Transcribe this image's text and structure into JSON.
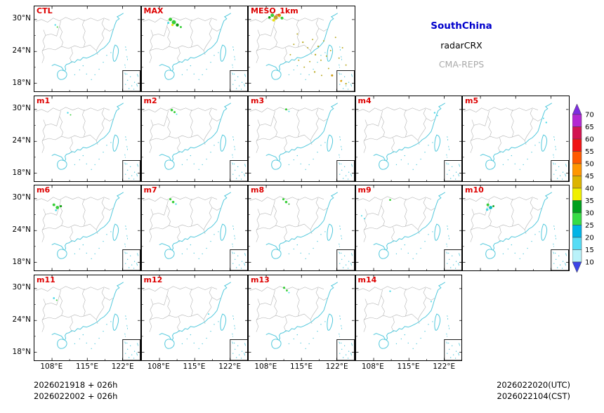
{
  "figure": {
    "legend": {
      "model": "SouthChina",
      "obs": "radarCRX",
      "ensemble": "CMA-REPS",
      "model_color": "#0000cc",
      "obs_color": "#000000",
      "ensemble_color": "#aaaaaa"
    },
    "footer": {
      "init_lines": [
        "2026021918 + 026h",
        "2026022002 + 026h"
      ],
      "valid_lines": [
        "2026022020(UTC)",
        "2026022104(CST)"
      ]
    },
    "axes": {
      "y_ticks": [
        "30°N",
        "24°N",
        "18°N"
      ],
      "x_ticks": [
        "108°E",
        "115°E",
        "122°E"
      ]
    },
    "panel_label_color": "#dd0000",
    "map_colors": {
      "coastline": "#50c8dc",
      "provinces": "#b4b4b4"
    },
    "rows": [
      {
        "panels": [
          {
            "label": "CTL",
            "echoes": [
              [
                30,
                27,
                1.2,
                "#40d8e8"
              ],
              [
                33,
                30,
                1.0,
                "#2ecc2e"
              ]
            ]
          },
          {
            "label": "MAX",
            "echoes": [
              [
                41,
                19,
                2.5,
                "#2ecc2e"
              ],
              [
                46,
                23,
                3.0,
                "#2ecc2e"
              ],
              [
                51,
                27,
                2.2,
                "#009900"
              ],
              [
                44,
                27,
                1.6,
                "#e8e000"
              ],
              [
                56,
                30,
                1.5,
                "#2ecc2e"
              ],
              [
                38,
                24,
                1.5,
                "#40d8e8"
              ]
            ]
          },
          {
            "label": "MESO_1km",
            "echoes": [
              [
                34,
                13,
                2.5,
                "#2ecc2e"
              ],
              [
                39,
                16,
                3.0,
                "#b8a81e"
              ],
              [
                44,
                13,
                2.5,
                "#e8a000"
              ],
              [
                48,
                17,
                2.0,
                "#2ecc2e"
              ],
              [
                36,
                20,
                2.0,
                "#e8e000"
              ],
              [
                30,
                16,
                1.8,
                "#009900"
              ],
              [
                70,
                40,
                1.0,
                "#b8a81e"
              ],
              [
                78,
                52,
                1.2,
                "#b8a81e"
              ],
              [
                85,
                60,
                1.0,
                "#b8a81e"
              ],
              [
                92,
                48,
                1.0,
                "#b8a81e"
              ],
              [
                100,
                58,
                1.2,
                "#b8a81e"
              ],
              [
                108,
                50,
                1.0,
                "#b8a81e"
              ],
              [
                96,
                70,
                1.2,
                "#b8a81e"
              ],
              [
                104,
                78,
                1.0,
                "#b8a81e"
              ],
              [
                112,
                72,
                1.0,
                "#b8a81e"
              ],
              [
                118,
                64,
                1.0,
                "#b8a81e"
              ],
              [
                88,
                80,
                1.0,
                "#b8a81e"
              ],
              [
                80,
                88,
                1.0,
                "#b8a81e"
              ],
              [
                95,
                95,
                1.2,
                "#b8a81e"
              ],
              [
                105,
                100,
                1.0,
                "#b8a81e"
              ],
              [
                115,
                90,
                1.0,
                "#b8a81e"
              ],
              [
                120,
                100,
                1.5,
                "#c89600"
              ],
              [
                65,
                55,
                1.0,
                "#b8a81e"
              ],
              [
                60,
                70,
                1.0,
                "#b8a81e"
              ],
              [
                72,
                78,
                1.0,
                "#b8a81e"
              ],
              [
                130,
                75,
                1.0,
                "#b8a81e"
              ],
              [
                135,
                60,
                1.0,
                "#b8a81e"
              ],
              [
                125,
                45,
                1.0,
                "#b8a81e"
              ],
              [
                140,
                85,
                1.0,
                "#b8a81e"
              ],
              [
                133,
                108,
                1.4,
                "#e8a000"
              ],
              [
                140,
                112,
                1.2,
                "#b8a81e"
              ]
            ]
          }
        ]
      },
      {
        "panels": [
          {
            "label": "m1",
            "echoes": [
              [
                48,
                24,
                1.2,
                "#40d8e8"
              ],
              [
                52,
                27,
                1.0,
                "#2ecc2e"
              ]
            ]
          },
          {
            "label": "m2",
            "echoes": [
              [
                43,
                20,
                1.8,
                "#2ecc2e"
              ],
              [
                47,
                23,
                1.5,
                "#2ecc2e"
              ],
              [
                50,
                26,
                1.0,
                "#40d8e8"
              ]
            ]
          },
          {
            "label": "m3",
            "echoes": [
              [
                54,
                19,
                1.5,
                "#2ecc2e"
              ],
              [
                58,
                22,
                1.0,
                "#40d8e8"
              ]
            ]
          },
          {
            "label": "m4",
            "echoes": [
              [
                113,
                24,
                1.2,
                "#40d8e8"
              ],
              [
                117,
                28,
                1.0,
                "#40d8e8"
              ]
            ]
          },
          {
            "label": "m5",
            "echoes": [
              [
                120,
                38,
                1.2,
                "#40d8e8"
              ],
              [
                116,
                32,
                1.0,
                "#40d8e8"
              ]
            ]
          }
        ]
      },
      {
        "panels": [
          {
            "label": "m6",
            "echoes": [
              [
                28,
                28,
                2.0,
                "#2ecc2e"
              ],
              [
                33,
                32,
                2.4,
                "#2ecc2e"
              ],
              [
                38,
                30,
                1.6,
                "#009900"
              ],
              [
                31,
                36,
                1.4,
                "#40d8e8"
              ]
            ]
          },
          {
            "label": "m7",
            "echoes": [
              [
                41,
                20,
                1.6,
                "#2ecc2e"
              ],
              [
                45,
                24,
                1.8,
                "#2ecc2e"
              ],
              [
                49,
                27,
                1.2,
                "#40d8e8"
              ]
            ]
          },
          {
            "label": "m8",
            "echoes": [
              [
                50,
                20,
                1.6,
                "#2ecc2e"
              ],
              [
                54,
                24,
                1.8,
                "#2ecc2e"
              ],
              [
                58,
                27,
                1.0,
                "#009900"
              ]
            ]
          },
          {
            "label": "m9",
            "echoes": [
              [
                49,
                21,
                1.4,
                "#2ecc2e"
              ],
              [
                8,
                44,
                1.0,
                "#40d8e8"
              ],
              [
                12,
                48,
                1.0,
                "#40d8e8"
              ]
            ]
          },
          {
            "label": "m10",
            "echoes": [
              [
                36,
                28,
                2.0,
                "#2ecc2e"
              ],
              [
                40,
                32,
                2.4,
                "#00b8b8"
              ],
              [
                35,
                35,
                1.8,
                "#40d8e8"
              ],
              [
                44,
                30,
                1.4,
                "#009900"
              ]
            ]
          }
        ]
      },
      {
        "panels": [
          {
            "label": "m11",
            "echoes": [
              [
                28,
                33,
                1.4,
                "#40d8e8"
              ],
              [
                32,
                36,
                1.0,
                "#2ecc2e"
              ]
            ]
          },
          {
            "label": "m12",
            "echoes": [
              [
                96,
                56,
                1.0,
                "#40d8e8"
              ]
            ]
          },
          {
            "label": "m13",
            "echoes": [
              [
                51,
                18,
                1.6,
                "#2ecc2e"
              ],
              [
                55,
                22,
                1.4,
                "#2ecc2e"
              ],
              [
                58,
                25,
                1.0,
                "#40d8e8"
              ]
            ]
          },
          {
            "label": "m14",
            "echoes": [
              [
                49,
                23,
                1.2,
                "#40d8e8"
              ],
              [
                108,
                38,
                1.0,
                "#40d8e8"
              ]
            ]
          }
        ]
      }
    ],
    "colorbar": {
      "values": [
        70,
        65,
        60,
        55,
        50,
        45,
        40,
        35,
        30,
        25,
        20,
        15,
        10
      ],
      "segment_colors_top_to_bottom": [
        "#b428d2",
        "#d21450",
        "#f01414",
        "#ff5a00",
        "#ff9600",
        "#dcb400",
        "#f0f000",
        "#00a01e",
        "#37dc46",
        "#00b4e6",
        "#55dcf5",
        "#b9f2fa"
      ],
      "top_arrow_color": "#7d2de0",
      "bottom_arrow_color": "#3c46e6"
    }
  }
}
